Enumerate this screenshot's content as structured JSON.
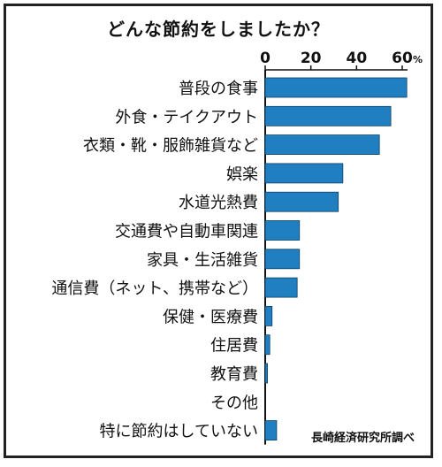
{
  "chart_data": {
    "type": "bar",
    "orientation": "horizontal",
    "title": "どんな節約をしましたか？",
    "categories": [
      "普段の食事",
      "外食・テイクアウト",
      "衣類・靴・服飾雑貨など",
      "娯楽",
      "水道光熱費",
      "交通費や自動車関連",
      "家具・生活雑貨",
      "通信費（ネット、携帯など）",
      "保健・医療費",
      "住居費",
      "教育費",
      "その他",
      "特に節約はしていない"
    ],
    "values": [
      62,
      55,
      50,
      34,
      32,
      15,
      15,
      14,
      3,
      2,
      1,
      0,
      5
    ],
    "xlim": [
      0,
      60
    ],
    "xticks": [
      "0",
      "20",
      "40",
      "60"
    ],
    "unit": "%",
    "bar_color": "#1f7fc0",
    "grid": false,
    "source": "長崎経済研究所調べ"
  }
}
